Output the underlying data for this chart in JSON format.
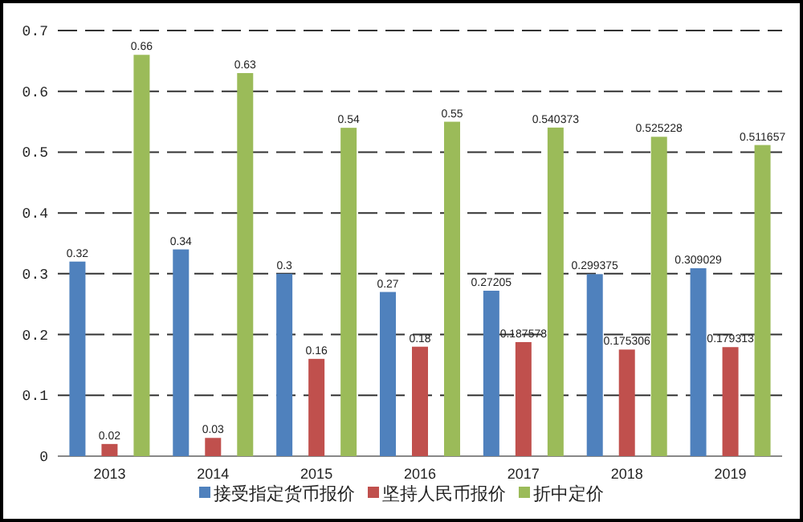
{
  "chart_data": {
    "type": "bar",
    "categories": [
      "2013",
      "2014",
      "2015",
      "2016",
      "2017",
      "2018",
      "2019"
    ],
    "series": [
      {
        "name": "接受指定货币报价",
        "color": "#4f81bd",
        "values": [
          0.32,
          0.34,
          0.3,
          0.27,
          0.27205,
          0.299375,
          0.309029
        ]
      },
      {
        "name": "坚持人民币报价",
        "color": "#c0504d",
        "values": [
          0.02,
          0.03,
          0.16,
          0.18,
          0.187578,
          0.175306,
          0.179313
        ]
      },
      {
        "name": "折中定价",
        "color": "#9bbb59",
        "values": [
          0.66,
          0.63,
          0.54,
          0.55,
          0.540373,
          0.525228,
          0.511657
        ]
      }
    ],
    "ylim": [
      0,
      0.7
    ],
    "yticks": [
      0,
      0.1,
      0.2,
      0.3,
      0.4,
      0.5,
      0.6,
      0.7
    ],
    "grid": "y",
    "legend": "bottom",
    "data_labels": true
  }
}
